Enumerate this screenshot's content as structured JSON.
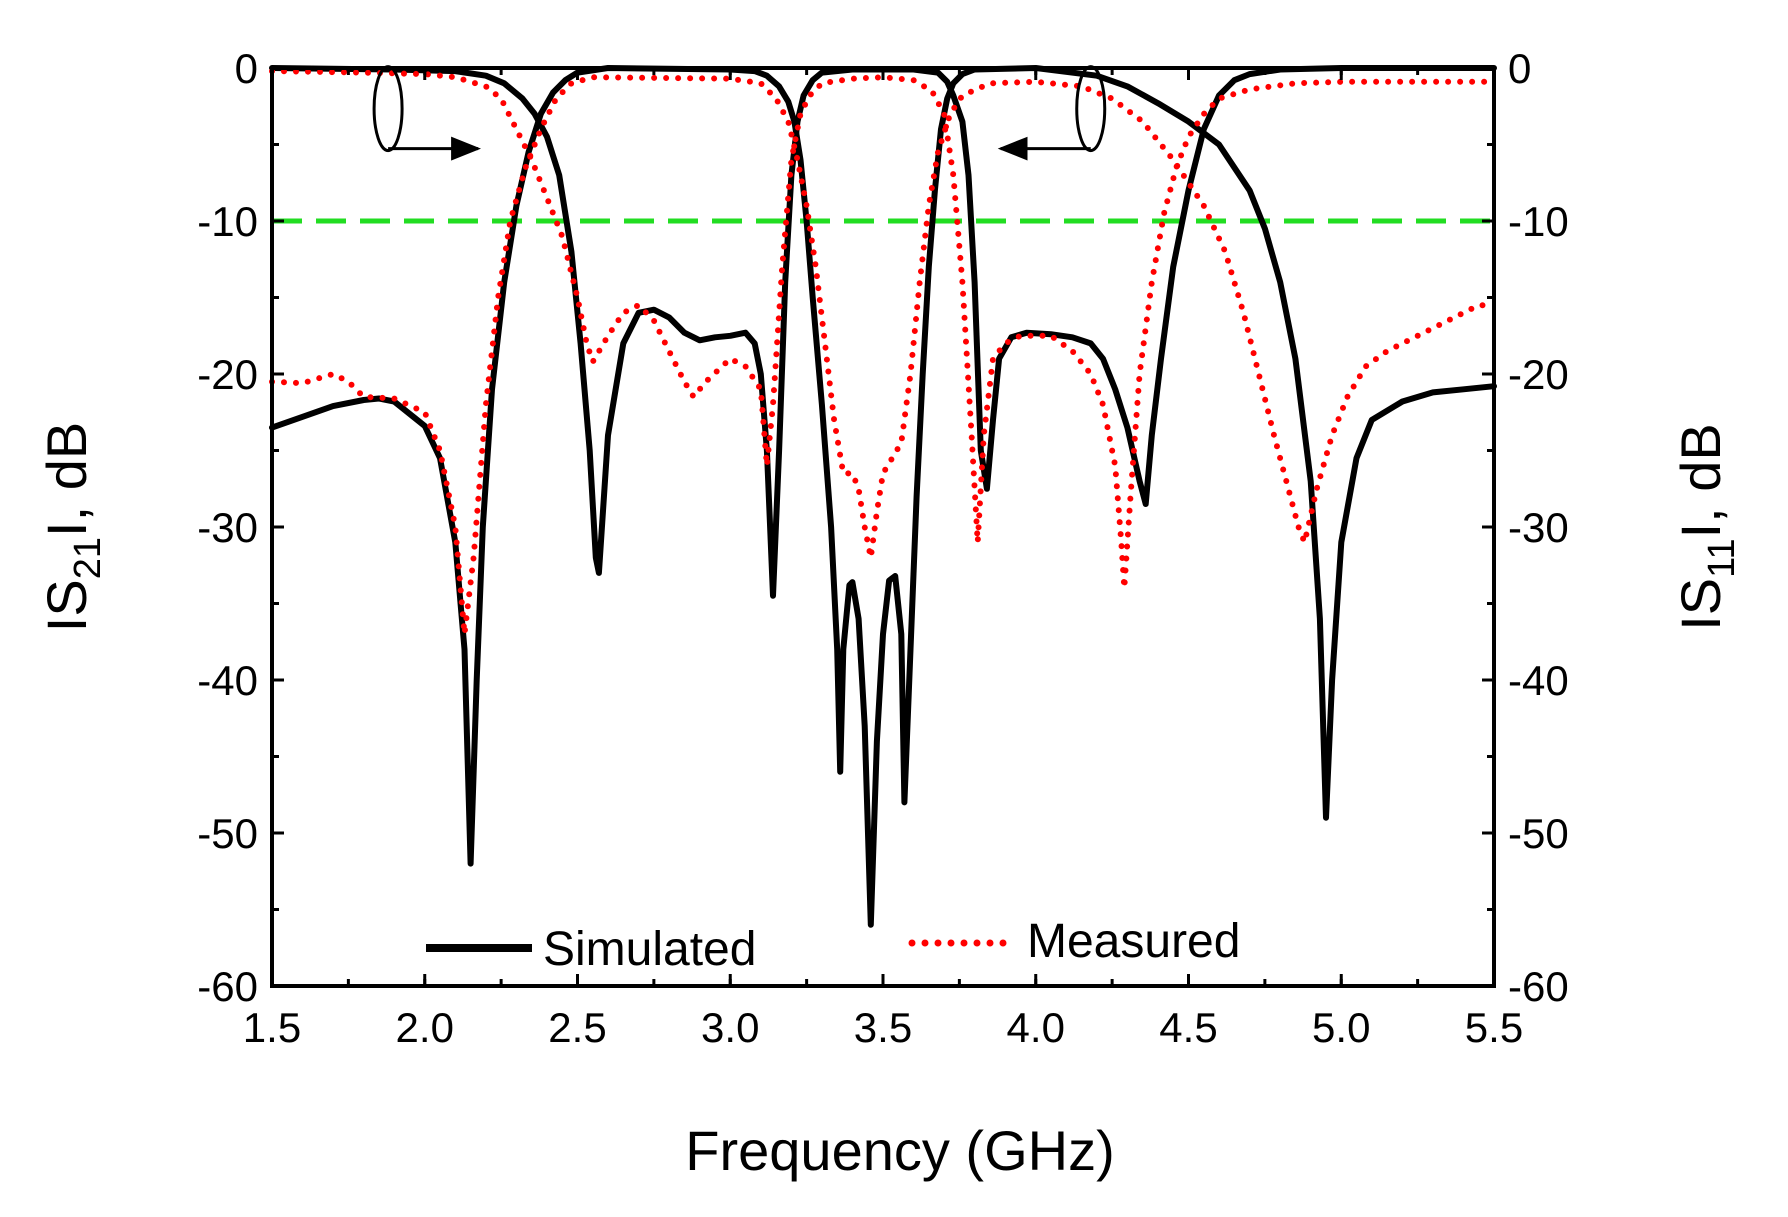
{
  "chart_data": {
    "type": "line",
    "xlabel": "Frequency (GHz)",
    "ylabel_left": {
      "main": "IS",
      "sub": "21",
      "rest": "I, dB"
    },
    "ylabel_right": {
      "main": "IS",
      "sub": "11",
      "rest": "I, dB"
    },
    "xlim": [
      1.5,
      5.5
    ],
    "ylim": [
      -60,
      0
    ],
    "x_ticks": [
      {
        "value": 1.5,
        "label": "1.5"
      },
      {
        "value": 2.0,
        "label": "2.0"
      },
      {
        "value": 2.5,
        "label": "2.5"
      },
      {
        "value": 3.0,
        "label": "3.0"
      },
      {
        "value": 3.5,
        "label": "3.5"
      },
      {
        "value": 4.0,
        "label": "4.0"
      },
      {
        "value": 4.5,
        "label": "4.5"
      },
      {
        "value": 5.0,
        "label": "5.0"
      },
      {
        "value": 5.5,
        "label": "5.5"
      }
    ],
    "y_ticks": [
      {
        "value": 0,
        "label": "0"
      },
      {
        "value": -10,
        "label": "-10"
      },
      {
        "value": -20,
        "label": "-20"
      },
      {
        "value": -30,
        "label": "-30"
      },
      {
        "value": -40,
        "label": "-40"
      },
      {
        "value": -50,
        "label": "-50"
      },
      {
        "value": -60,
        "label": "-60"
      }
    ],
    "x_minor_step": 0.25,
    "y_minor_step": 5,
    "reference_line": {
      "y": -10,
      "color": "#22dd22",
      "style": "dashed"
    },
    "legend": [
      {
        "label": "Simulated",
        "color": "#000000",
        "style": "solid"
      },
      {
        "label": "Measured",
        "color": "#ff0000",
        "style": "dotted"
      }
    ],
    "annotations": [
      {
        "type": "ellipse-arrow",
        "direction": "right",
        "target_axis": "right",
        "at_x": 1.88,
        "at_y": -2
      },
      {
        "type": "ellipse-arrow",
        "direction": "left",
        "target_axis": "left",
        "at_x": 4.18,
        "at_y": -2
      }
    ],
    "series": [
      {
        "name": "Simulated S21",
        "legend": "Simulated",
        "color": "#000000",
        "style": "solid",
        "points": [
          [
            1.5,
            0
          ],
          [
            1.9,
            -0.1
          ],
          [
            2.1,
            -0.2
          ],
          [
            2.2,
            -0.5
          ],
          [
            2.26,
            -1
          ],
          [
            2.32,
            -2
          ],
          [
            2.36,
            -3
          ],
          [
            2.4,
            -4.5
          ],
          [
            2.44,
            -7
          ],
          [
            2.48,
            -12
          ],
          [
            2.51,
            -18
          ],
          [
            2.54,
            -25
          ],
          [
            2.56,
            -32
          ],
          [
            2.57,
            -33
          ],
          [
            2.6,
            -24
          ],
          [
            2.65,
            -18
          ],
          [
            2.7,
            -16
          ],
          [
            2.75,
            -15.8
          ],
          [
            2.8,
            -16.3
          ],
          [
            2.85,
            -17.3
          ],
          [
            2.9,
            -17.8
          ],
          [
            2.95,
            -17.6
          ],
          [
            3.0,
            -17.5
          ],
          [
            3.05,
            -17.3
          ],
          [
            3.08,
            -18
          ],
          [
            3.1,
            -20
          ],
          [
            3.12,
            -25
          ],
          [
            3.14,
            -34.5
          ],
          [
            3.16,
            -25
          ],
          [
            3.18,
            -14
          ],
          [
            3.2,
            -7
          ],
          [
            3.22,
            -3.5
          ],
          [
            3.24,
            -1.8
          ],
          [
            3.27,
            -0.8
          ],
          [
            3.3,
            -0.3
          ],
          [
            3.4,
            -0.1
          ],
          [
            3.6,
            -0.1
          ],
          [
            3.68,
            -0.3
          ],
          [
            3.71,
            -0.9
          ],
          [
            3.73,
            -1.8
          ],
          [
            3.76,
            -3.5
          ],
          [
            3.78,
            -7
          ],
          [
            3.8,
            -14
          ],
          [
            3.82,
            -25
          ],
          [
            3.84,
            -27.5
          ],
          [
            3.86,
            -23
          ],
          [
            3.88,
            -19
          ],
          [
            3.92,
            -17.6
          ],
          [
            3.97,
            -17.3
          ],
          [
            4.05,
            -17.4
          ],
          [
            4.12,
            -17.6
          ],
          [
            4.18,
            -18
          ],
          [
            4.22,
            -19
          ],
          [
            4.26,
            -21
          ],
          [
            4.3,
            -23.5
          ],
          [
            4.34,
            -27
          ],
          [
            4.36,
            -28.5
          ],
          [
            4.38,
            -24
          ],
          [
            4.41,
            -19
          ],
          [
            4.45,
            -13
          ],
          [
            4.5,
            -8
          ],
          [
            4.55,
            -4
          ],
          [
            4.6,
            -1.8
          ],
          [
            4.65,
            -0.8
          ],
          [
            4.7,
            -0.4
          ],
          [
            4.8,
            -0.1
          ],
          [
            5.0,
            0
          ],
          [
            5.5,
            0
          ]
        ]
      },
      {
        "name": "Simulated S11",
        "legend": "Simulated",
        "color": "#000000",
        "style": "solid",
        "points": [
          [
            1.5,
            -23.5
          ],
          [
            1.6,
            -22.8
          ],
          [
            1.7,
            -22.1
          ],
          [
            1.8,
            -21.7
          ],
          [
            1.85,
            -21.6
          ],
          [
            1.9,
            -21.8
          ],
          [
            2.0,
            -23.4
          ],
          [
            2.05,
            -25.5
          ],
          [
            2.1,
            -31
          ],
          [
            2.13,
            -38
          ],
          [
            2.15,
            -52
          ],
          [
            2.17,
            -40
          ],
          [
            2.19,
            -30
          ],
          [
            2.22,
            -21
          ],
          [
            2.26,
            -14
          ],
          [
            2.3,
            -9
          ],
          [
            2.34,
            -5.5
          ],
          [
            2.38,
            -3
          ],
          [
            2.42,
            -1.6
          ],
          [
            2.46,
            -0.8
          ],
          [
            2.5,
            -0.3
          ],
          [
            2.6,
            0
          ],
          [
            3.0,
            -0.1
          ],
          [
            3.08,
            -0.2
          ],
          [
            3.12,
            -0.5
          ],
          [
            3.16,
            -1.2
          ],
          [
            3.19,
            -2.2
          ],
          [
            3.21,
            -3.5
          ],
          [
            3.23,
            -6
          ],
          [
            3.25,
            -10
          ],
          [
            3.27,
            -15
          ],
          [
            3.3,
            -22
          ],
          [
            3.33,
            -30
          ],
          [
            3.35,
            -38
          ],
          [
            3.36,
            -46
          ],
          [
            3.37,
            -38
          ],
          [
            3.39,
            -33.8
          ],
          [
            3.4,
            -33.6
          ],
          [
            3.42,
            -36
          ],
          [
            3.44,
            -43
          ],
          [
            3.46,
            -56
          ],
          [
            3.48,
            -44
          ],
          [
            3.5,
            -37
          ],
          [
            3.52,
            -33.5
          ],
          [
            3.54,
            -33.2
          ],
          [
            3.56,
            -37
          ],
          [
            3.57,
            -48
          ],
          [
            3.59,
            -38
          ],
          [
            3.61,
            -28
          ],
          [
            3.63,
            -20
          ],
          [
            3.65,
            -13
          ],
          [
            3.67,
            -8
          ],
          [
            3.69,
            -4
          ],
          [
            3.71,
            -2
          ],
          [
            3.73,
            -1
          ],
          [
            3.76,
            -0.4
          ],
          [
            3.8,
            -0.1
          ],
          [
            4.0,
            0
          ],
          [
            4.2,
            -0.5
          ],
          [
            4.3,
            -1.2
          ],
          [
            4.4,
            -2.3
          ],
          [
            4.5,
            -3.5
          ],
          [
            4.6,
            -5
          ],
          [
            4.7,
            -8
          ],
          [
            4.75,
            -10.5
          ],
          [
            4.8,
            -14
          ],
          [
            4.85,
            -19
          ],
          [
            4.9,
            -27
          ],
          [
            4.93,
            -36
          ],
          [
            4.95,
            -49
          ],
          [
            4.97,
            -40
          ],
          [
            5.0,
            -31
          ],
          [
            5.05,
            -25.5
          ],
          [
            5.1,
            -23
          ],
          [
            5.2,
            -21.8
          ],
          [
            5.3,
            -21.2
          ],
          [
            5.4,
            -21
          ],
          [
            5.5,
            -20.8
          ]
        ]
      },
      {
        "name": "Measured S21",
        "legend": "Measured",
        "color": "#ff0000",
        "style": "dotted",
        "points": [
          [
            1.5,
            -0.2
          ],
          [
            1.8,
            -0.3
          ],
          [
            2.0,
            -0.4
          ],
          [
            2.1,
            -0.6
          ],
          [
            2.2,
            -1.2
          ],
          [
            2.25,
            -2
          ],
          [
            2.3,
            -4
          ],
          [
            2.35,
            -6
          ],
          [
            2.4,
            -8.5
          ],
          [
            2.45,
            -11
          ],
          [
            2.5,
            -15
          ],
          [
            2.53,
            -18
          ],
          [
            2.55,
            -19.2
          ],
          [
            2.6,
            -17.5
          ],
          [
            2.65,
            -16
          ],
          [
            2.7,
            -15.5
          ],
          [
            2.75,
            -16.5
          ],
          [
            2.8,
            -18.5
          ],
          [
            2.85,
            -20.5
          ],
          [
            2.88,
            -21.5
          ],
          [
            2.92,
            -20.5
          ],
          [
            3.0,
            -19
          ],
          [
            3.05,
            -19.5
          ],
          [
            3.1,
            -21
          ],
          [
            3.12,
            -26
          ],
          [
            3.14,
            -22
          ],
          [
            3.17,
            -13
          ],
          [
            3.2,
            -6
          ],
          [
            3.23,
            -3
          ],
          [
            3.26,
            -1.8
          ],
          [
            3.3,
            -1
          ],
          [
            3.4,
            -0.7
          ],
          [
            3.5,
            -0.6
          ],
          [
            3.6,
            -0.8
          ],
          [
            3.66,
            -1.5
          ],
          [
            3.7,
            -3
          ],
          [
            3.73,
            -7
          ],
          [
            3.76,
            -14
          ],
          [
            3.79,
            -24
          ],
          [
            3.81,
            -31
          ],
          [
            3.83,
            -24
          ],
          [
            3.86,
            -19
          ],
          [
            3.9,
            -18
          ],
          [
            3.95,
            -17.5
          ],
          [
            4.05,
            -17.5
          ],
          [
            4.12,
            -18.5
          ],
          [
            4.18,
            -20
          ],
          [
            4.22,
            -22
          ],
          [
            4.26,
            -26
          ],
          [
            4.28,
            -31
          ],
          [
            4.29,
            -34
          ],
          [
            4.31,
            -28
          ],
          [
            4.34,
            -20
          ],
          [
            4.38,
            -14
          ],
          [
            4.42,
            -9.5
          ],
          [
            4.46,
            -6.5
          ],
          [
            4.5,
            -4.5
          ],
          [
            4.55,
            -3
          ],
          [
            4.6,
            -2
          ],
          [
            4.7,
            -1.4
          ],
          [
            4.85,
            -1
          ],
          [
            5.0,
            -0.9
          ],
          [
            5.5,
            -0.9
          ]
        ]
      },
      {
        "name": "Measured S11",
        "legend": "Measured",
        "color": "#ff0000",
        "style": "dotted",
        "points": [
          [
            1.5,
            -20.5
          ],
          [
            1.6,
            -20.6
          ],
          [
            1.7,
            -20
          ],
          [
            1.75,
            -20.5
          ],
          [
            1.8,
            -21.5
          ],
          [
            1.9,
            -21.6
          ],
          [
            2.0,
            -22.5
          ],
          [
            2.05,
            -25
          ],
          [
            2.1,
            -30
          ],
          [
            2.13,
            -37
          ],
          [
            2.16,
            -32
          ],
          [
            2.2,
            -22
          ],
          [
            2.24,
            -15
          ],
          [
            2.28,
            -10
          ],
          [
            2.33,
            -6.5
          ],
          [
            2.38,
            -4
          ],
          [
            2.43,
            -2
          ],
          [
            2.48,
            -1
          ],
          [
            2.55,
            -0.6
          ],
          [
            3.0,
            -0.7
          ],
          [
            3.1,
            -1
          ],
          [
            3.15,
            -2
          ],
          [
            3.19,
            -3.5
          ],
          [
            3.22,
            -6
          ],
          [
            3.25,
            -9
          ],
          [
            3.28,
            -13
          ],
          [
            3.31,
            -18
          ],
          [
            3.34,
            -23
          ],
          [
            3.37,
            -26.5
          ],
          [
            3.4,
            -26.5
          ],
          [
            3.42,
            -27.5
          ],
          [
            3.44,
            -30
          ],
          [
            3.46,
            -32
          ],
          [
            3.48,
            -29
          ],
          [
            3.5,
            -26.5
          ],
          [
            3.53,
            -25.5
          ],
          [
            3.56,
            -24.5
          ],
          [
            3.59,
            -20
          ],
          [
            3.62,
            -14
          ],
          [
            3.65,
            -9
          ],
          [
            3.68,
            -5.5
          ],
          [
            3.72,
            -3
          ],
          [
            3.76,
            -1.8
          ],
          [
            3.85,
            -1
          ],
          [
            4.0,
            -0.9
          ],
          [
            4.15,
            -1.2
          ],
          [
            4.25,
            -2
          ],
          [
            4.35,
            -3.5
          ],
          [
            4.45,
            -6
          ],
          [
            4.55,
            -9
          ],
          [
            4.62,
            -12
          ],
          [
            4.68,
            -16
          ],
          [
            4.73,
            -20
          ],
          [
            4.78,
            -24
          ],
          [
            4.82,
            -27
          ],
          [
            4.86,
            -30
          ],
          [
            4.88,
            -31
          ],
          [
            4.92,
            -27.5
          ],
          [
            4.97,
            -24
          ],
          [
            5.02,
            -21.5
          ],
          [
            5.08,
            -19.5
          ],
          [
            5.15,
            -18.5
          ],
          [
            5.25,
            -17.5
          ],
          [
            5.35,
            -16.5
          ],
          [
            5.45,
            -15.5
          ],
          [
            5.5,
            -15.5
          ]
        ]
      }
    ]
  }
}
